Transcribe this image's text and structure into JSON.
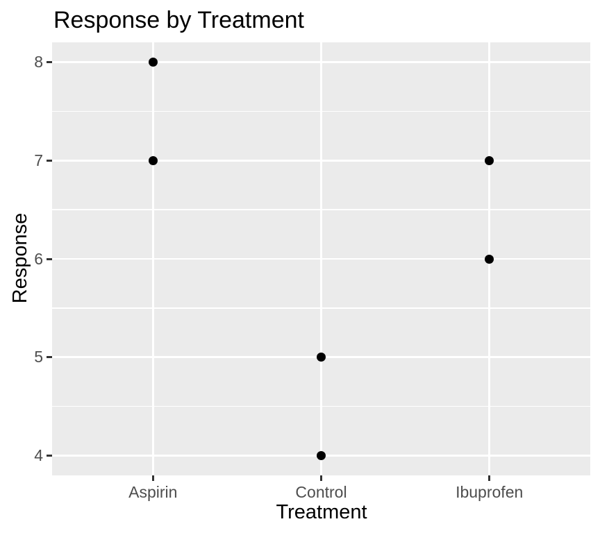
{
  "title": "Response by Treatment",
  "chart_data": {
    "type": "scatter",
    "title": "Response by Treatment",
    "xlabel": "Treatment",
    "ylabel": "Response",
    "categories": [
      "Aspirin",
      "Control",
      "Ibuprofen"
    ],
    "points": [
      {
        "x": "Aspirin",
        "y": 8
      },
      {
        "x": "Aspirin",
        "y": 7
      },
      {
        "x": "Control",
        "y": 5
      },
      {
        "x": "Control",
        "y": 4
      },
      {
        "x": "Ibuprofen",
        "y": 7
      },
      {
        "x": "Ibuprofen",
        "y": 6
      }
    ],
    "y_ticks": [
      4,
      5,
      6,
      7,
      8
    ],
    "ylim": [
      3.8,
      8.2
    ],
    "grid": "major-and-minor-horizontal, major-vertical",
    "legend_position": "none",
    "theme": "ggplot2-theme-gray"
  },
  "colors": {
    "background": "#FFFFFF",
    "panel_bg": "#EBEBEB",
    "gridline": "#FFFFFF",
    "point": "#000000",
    "tick_label": "#4D4D4D",
    "tick_mark": "#333333",
    "title_text": "#000000",
    "axis_title_text": "#000000"
  }
}
